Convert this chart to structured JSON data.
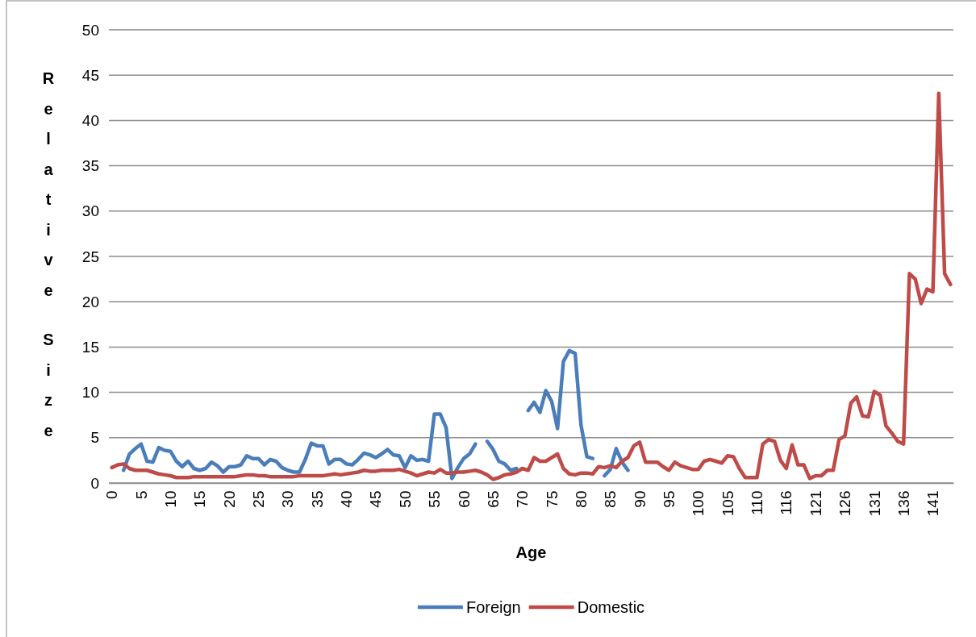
{
  "chart_data": {
    "type": "line",
    "xlabel": "Age",
    "ylabel": "Relative Size",
    "categories": [
      "0",
      null,
      null,
      null,
      null,
      "5",
      null,
      null,
      null,
      null,
      "10",
      null,
      null,
      null,
      null,
      "15",
      null,
      null,
      null,
      null,
      "20",
      null,
      null,
      null,
      null,
      "25",
      null,
      null,
      null,
      null,
      "30",
      null,
      null,
      null,
      null,
      "35",
      null,
      null,
      null,
      null,
      "40",
      null,
      null,
      null,
      null,
      "45",
      null,
      null,
      null,
      null,
      "50",
      null,
      null,
      null,
      null,
      "55",
      null,
      null,
      null,
      null,
      "60",
      null,
      null,
      null,
      null,
      "65",
      null,
      null,
      null,
      null,
      "70",
      null,
      null,
      null,
      null,
      "75",
      null,
      null,
      null,
      null,
      "80",
      null,
      null,
      null,
      null,
      "85",
      null,
      null,
      null,
      null,
      "90",
      null,
      null,
      null,
      null,
      "95",
      null,
      null,
      null,
      null,
      "100",
      null,
      null,
      null,
      null,
      "105",
      null,
      null,
      null,
      null,
      "110",
      null,
      null,
      null,
      null,
      "116",
      null,
      null,
      null,
      null,
      "121",
      null,
      null,
      null,
      null,
      "126",
      null,
      null,
      null,
      null,
      "131",
      null,
      null,
      null,
      null,
      "136",
      null,
      null,
      null,
      null,
      "141",
      null,
      null,
      null
    ],
    "series": [
      {
        "name": "Foreign",
        "color": "#4a7ebb",
        "values": [
          null,
          null,
          1.4,
          3.2,
          3.8,
          4.3,
          2.4,
          2.3,
          3.9,
          3.6,
          3.5,
          2.4,
          1.8,
          2.4,
          1.6,
          1.4,
          1.6,
          2.3,
          1.9,
          1.2,
          1.8,
          1.8,
          2.0,
          3.0,
          2.7,
          2.7,
          2.0,
          2.6,
          2.4,
          1.7,
          1.4,
          1.2,
          1.2,
          2.6,
          4.4,
          4.1,
          4.1,
          2.1,
          2.6,
          2.6,
          2.1,
          2.0,
          2.6,
          3.3,
          3.1,
          2.8,
          3.2,
          3.7,
          3.1,
          3.0,
          1.7,
          3.0,
          2.5,
          2.6,
          2.4,
          7.6,
          7.6,
          6.1,
          0.5,
          1.7,
          2.7,
          3.2,
          4.3,
          null,
          4.6,
          3.7,
          2.4,
          2.1,
          1.4,
          1.6,
          null,
          8.0,
          8.9,
          7.8,
          10.2,
          9.0,
          6.0,
          13.4,
          14.6,
          14.3,
          6.4,
          2.9,
          2.7,
          null,
          0.8,
          1.5,
          3.8,
          2.3,
          1.4,
          null,
          null,
          null,
          null,
          null,
          null,
          null,
          null,
          null,
          null,
          null,
          null,
          null,
          null,
          null,
          null,
          null,
          null,
          null,
          null,
          null,
          null,
          null,
          null,
          null,
          null,
          null,
          null,
          null,
          null,
          null,
          null,
          null,
          null,
          null,
          null,
          null,
          null,
          null,
          null,
          null,
          null,
          null,
          null,
          null,
          null,
          null,
          null,
          null,
          null,
          null,
          null,
          null,
          null,
          null
        ]
      },
      {
        "name": "Domestic",
        "color": "#be4b48",
        "values": [
          1.7,
          2.0,
          2.1,
          1.6,
          1.4,
          1.4,
          1.4,
          1.2,
          1.0,
          0.9,
          0.8,
          0.6,
          0.6,
          0.6,
          0.7,
          0.7,
          0.7,
          0.7,
          0.7,
          0.7,
          0.7,
          0.7,
          0.8,
          0.9,
          0.9,
          0.8,
          0.8,
          0.7,
          0.7,
          0.7,
          0.7,
          0.7,
          0.8,
          0.8,
          0.8,
          0.8,
          0.8,
          0.9,
          1.0,
          0.9,
          1.0,
          1.1,
          1.2,
          1.4,
          1.3,
          1.3,
          1.4,
          1.4,
          1.4,
          1.5,
          1.3,
          1.1,
          0.8,
          1.0,
          1.2,
          1.1,
          1.5,
          1.1,
          1.1,
          1.2,
          1.2,
          1.3,
          1.4,
          1.2,
          0.9,
          0.4,
          0.6,
          0.9,
          1.0,
          1.2,
          1.6,
          1.4,
          2.8,
          2.4,
          2.4,
          2.8,
          3.2,
          1.6,
          1.0,
          0.9,
          1.1,
          1.1,
          1.0,
          1.8,
          1.7,
          1.9,
          1.7,
          2.4,
          2.8,
          4.1,
          4.5,
          2.3,
          2.3,
          2.3,
          1.8,
          1.4,
          2.3,
          1.9,
          1.7,
          1.5,
          1.5,
          2.4,
          2.6,
          2.4,
          2.2,
          3.0,
          2.9,
          1.6,
          0.6,
          0.6,
          0.6,
          4.3,
          4.8,
          4.6,
          2.5,
          1.6,
          4.2,
          2.0,
          2.0,
          0.5,
          0.8,
          0.8,
          1.4,
          1.4,
          4.8,
          5.2,
          8.8,
          9.5,
          7.4,
          7.3,
          10.1,
          9.7,
          6.3,
          5.5,
          4.6,
          4.3,
          23.1,
          22.5,
          19.8,
          21.4,
          21.1,
          43.0,
          23.1,
          21.9
        ]
      }
    ],
    "ylim": [
      0,
      50
    ],
    "yticks": [
      0,
      5,
      10,
      15,
      20,
      25,
      30,
      35,
      40,
      45,
      50
    ],
    "grid": "y",
    "legend": "bottom",
    "marker": "none",
    "line_style": "solid"
  }
}
